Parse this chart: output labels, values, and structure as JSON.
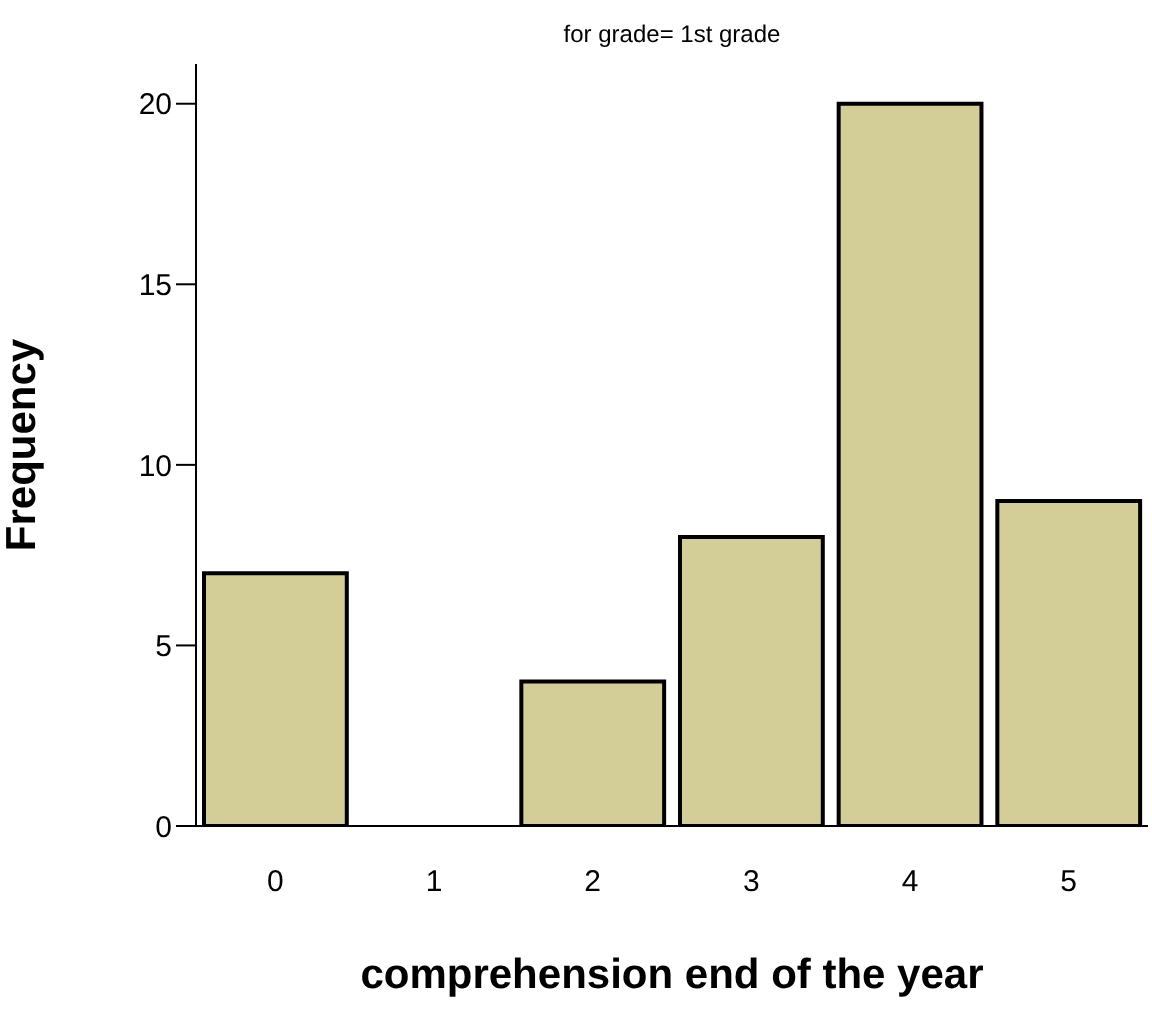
{
  "chart_data": {
    "type": "histogram",
    "title": "for grade= 1st grade",
    "xlabel": "comprehension end of the year",
    "ylabel": "Frequency",
    "bins": [
      -0.5,
      0.5,
      1.5,
      2.5,
      3.5,
      4.5,
      5.5
    ],
    "values": [
      7,
      0,
      4,
      8,
      20,
      9
    ],
    "color": "#d3ce97",
    "xlim": [
      -0.5,
      5.5
    ],
    "xticks": [
      0,
      1,
      2,
      3,
      4,
      5
    ],
    "ylim": [
      0,
      21.1
    ],
    "yticks": [
      0,
      5,
      10,
      15,
      20
    ],
    "grid": false
  }
}
